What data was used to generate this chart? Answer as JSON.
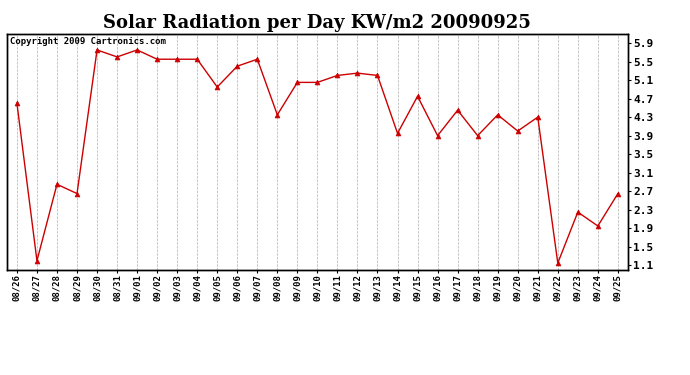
{
  "title": "Solar Radiation per Day KW/m2 20090925",
  "copyright_text": "Copyright 2009 Cartronics.com",
  "dates": [
    "08/26",
    "08/27",
    "08/28",
    "08/29",
    "08/30",
    "08/31",
    "09/01",
    "09/02",
    "09/03",
    "09/04",
    "09/05",
    "09/06",
    "09/07",
    "09/08",
    "09/09",
    "09/10",
    "09/11",
    "09/12",
    "09/13",
    "09/14",
    "09/15",
    "09/16",
    "09/17",
    "09/18",
    "09/19",
    "09/20",
    "09/21",
    "09/22",
    "09/23",
    "09/24",
    "09/25"
  ],
  "values": [
    4.6,
    1.2,
    2.85,
    2.65,
    5.75,
    5.6,
    5.75,
    5.55,
    5.55,
    5.55,
    4.95,
    5.4,
    5.55,
    4.35,
    5.05,
    5.05,
    5.2,
    5.25,
    5.2,
    3.95,
    4.75,
    3.9,
    4.45,
    3.9,
    4.35,
    4.0,
    4.3,
    1.15,
    2.25,
    1.95,
    2.65
  ],
  "line_color": "#cc0000",
  "marker": "^",
  "marker_size": 3.5,
  "bg_color": "#ffffff",
  "grid_color": "#999999",
  "ylim": [
    1.0,
    6.1
  ],
  "yticks_right": [
    1.1,
    1.5,
    1.9,
    2.3,
    2.7,
    3.1,
    3.5,
    3.9,
    4.3,
    4.7,
    5.1,
    5.5,
    5.9
  ],
  "title_fontsize": 13,
  "copyright_fontsize": 6.5,
  "tick_fontsize": 6.5,
  "ytick_fontsize": 8
}
